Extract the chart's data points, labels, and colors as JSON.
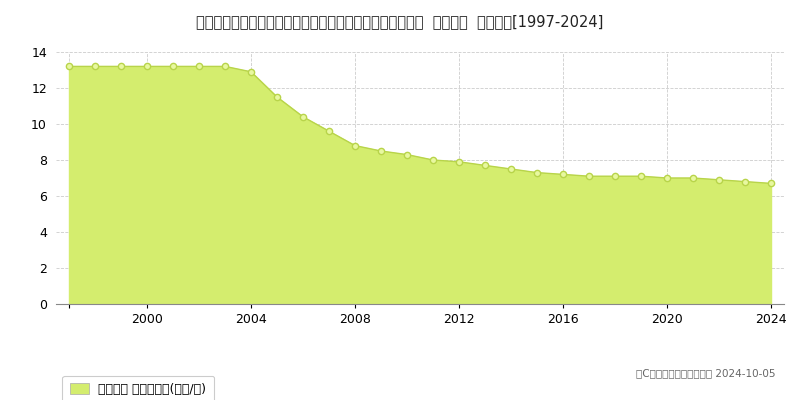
{
  "title": "山口県熊毛郡田布施町大字大波野字下正下給３２４番１８  基準地価  地価推移[1997-2024]",
  "years": [
    1997,
    1998,
    1999,
    2000,
    2001,
    2002,
    2003,
    2004,
    2005,
    2006,
    2007,
    2008,
    2009,
    2010,
    2011,
    2012,
    2013,
    2014,
    2015,
    2016,
    2017,
    2018,
    2019,
    2020,
    2021,
    2022,
    2023,
    2024
  ],
  "values": [
    13.2,
    13.2,
    13.2,
    13.2,
    13.2,
    13.2,
    13.2,
    12.9,
    11.5,
    10.4,
    9.6,
    8.8,
    8.5,
    8.3,
    8.0,
    7.9,
    7.7,
    7.5,
    7.3,
    7.2,
    7.1,
    7.1,
    7.1,
    7.0,
    7.0,
    6.9,
    6.8,
    6.7
  ],
  "fill_color": "#d4ed6e",
  "line_color": "#b8d44a",
  "marker_face": "#e8f8a0",
  "ylim": [
    0,
    14
  ],
  "yticks": [
    0,
    2,
    4,
    6,
    8,
    10,
    12,
    14
  ],
  "xticks": [
    1997,
    2000,
    2004,
    2008,
    2012,
    2016,
    2020,
    2024
  ],
  "xlabel_ticks": [
    "",
    "2000",
    "2004",
    "2008",
    "2012",
    "2016",
    "2020",
    "2024"
  ],
  "grid_color": "#cccccc",
  "background_color": "#ffffff",
  "legend_label": "基準地価 平均坪単価(万円/坪)",
  "copyright_text": "（C）土地価格ドットコム 2024-10-05",
  "title_fontsize": 10.5,
  "axis_fontsize": 9,
  "legend_fontsize": 9
}
